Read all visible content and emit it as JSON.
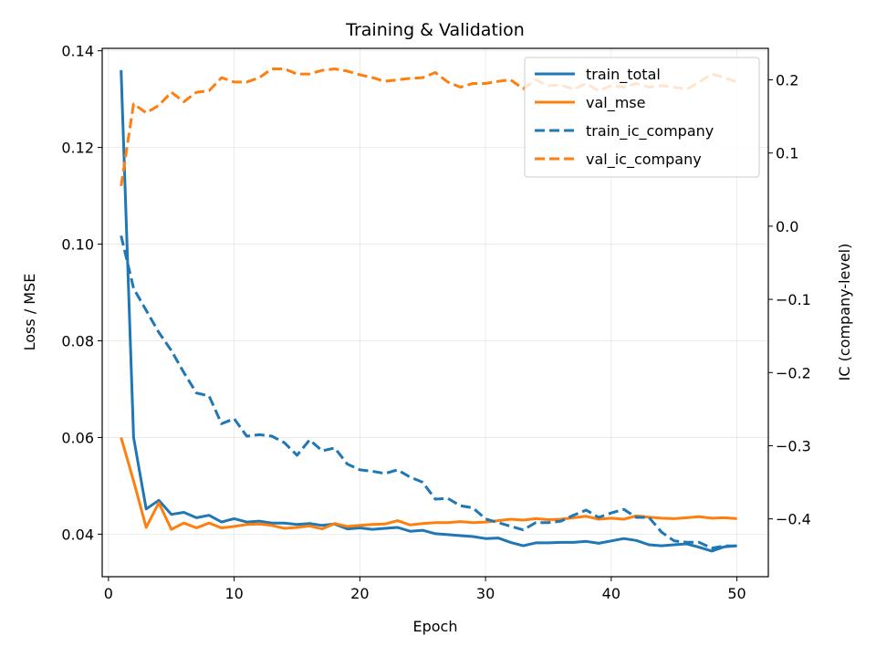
{
  "chart_data": {
    "type": "line",
    "title": "Training & Validation",
    "xlabel": "Epoch",
    "ylabel_left": "Loss / MSE",
    "ylabel_right": "IC (company-level)",
    "xlim": [
      -0.5,
      52.5
    ],
    "ylim_left": [
      0.0312,
      0.1405
    ],
    "ylim_right": [
      -0.479,
      0.243
    ],
    "x_ticks": [
      0,
      10,
      20,
      30,
      40,
      50
    ],
    "y_left_ticks": [
      0.04,
      0.06,
      0.08,
      0.1,
      0.12,
      0.14
    ],
    "y_left_tick_labels": [
      "0.04",
      "0.06",
      "0.08",
      "0.10",
      "0.12",
      "0.14"
    ],
    "y_right_ticks": [
      -0.4,
      -0.3,
      -0.2,
      -0.1,
      0.0,
      0.1,
      0.2
    ],
    "y_right_tick_labels": [
      "−0.4",
      "−0.3",
      "−0.2",
      "−0.1",
      "0.0",
      "0.1",
      "0.2"
    ],
    "grid": true,
    "legend_position": "top-right",
    "x": [
      1,
      2,
      3,
      4,
      5,
      6,
      7,
      8,
      9,
      10,
      11,
      12,
      13,
      14,
      15,
      16,
      17,
      18,
      19,
      20,
      21,
      22,
      23,
      24,
      25,
      26,
      27,
      28,
      29,
      30,
      31,
      32,
      33,
      34,
      35,
      36,
      37,
      38,
      39,
      40,
      41,
      42,
      43,
      44,
      45,
      46,
      47,
      48,
      49,
      50
    ],
    "series": [
      {
        "name": "train_total",
        "axis": "left",
        "color": "#1f77b4",
        "dash": "solid",
        "values": [
          0.136,
          0.06,
          0.0452,
          0.047,
          0.0441,
          0.0445,
          0.0434,
          0.0439,
          0.0425,
          0.0432,
          0.0425,
          0.0427,
          0.0423,
          0.0423,
          0.042,
          0.0422,
          0.0418,
          0.0421,
          0.0411,
          0.0413,
          0.041,
          0.0412,
          0.0414,
          0.0406,
          0.0408,
          0.0401,
          0.0399,
          0.0397,
          0.0395,
          0.0391,
          0.0392,
          0.0383,
          0.0376,
          0.0382,
          0.0382,
          0.0383,
          0.0383,
          0.0385,
          0.0381,
          0.0386,
          0.0391,
          0.0387,
          0.0378,
          0.0376,
          0.0378,
          0.038,
          0.0373,
          0.0365,
          0.0374,
          0.0376
        ]
      },
      {
        "name": "val_mse",
        "axis": "left",
        "color": "#ff7f0e",
        "dash": "solid",
        "values": [
          0.06,
          0.051,
          0.0414,
          0.0465,
          0.041,
          0.0423,
          0.0413,
          0.0423,
          0.0413,
          0.0416,
          0.042,
          0.0421,
          0.0418,
          0.0412,
          0.0414,
          0.0417,
          0.0411,
          0.0422,
          0.0416,
          0.0418,
          0.042,
          0.0421,
          0.0428,
          0.0419,
          0.0422,
          0.0424,
          0.0424,
          0.0426,
          0.0424,
          0.0425,
          0.0428,
          0.0431,
          0.0429,
          0.0432,
          0.043,
          0.0431,
          0.0434,
          0.0437,
          0.0431,
          0.0433,
          0.0431,
          0.0438,
          0.0435,
          0.0433,
          0.0432,
          0.0434,
          0.0436,
          0.0433,
          0.0434,
          0.0432
        ]
      },
      {
        "name": "train_ic_company",
        "axis": "right",
        "color": "#1f77b4",
        "dash": "dashed",
        "values": [
          -0.013,
          -0.085,
          -0.115,
          -0.145,
          -0.17,
          -0.2,
          -0.228,
          -0.232,
          -0.27,
          -0.263,
          -0.287,
          -0.285,
          -0.287,
          -0.296,
          -0.313,
          -0.292,
          -0.307,
          -0.303,
          -0.325,
          -0.333,
          -0.335,
          -0.338,
          -0.333,
          -0.343,
          -0.35,
          -0.373,
          -0.372,
          -0.382,
          -0.385,
          -0.4,
          -0.405,
          -0.41,
          -0.415,
          -0.405,
          -0.405,
          -0.403,
          -0.395,
          -0.388,
          -0.398,
          -0.392,
          -0.387,
          -0.398,
          -0.398,
          -0.418,
          -0.43,
          -0.432,
          -0.432,
          -0.44,
          -0.437,
          -0.437
        ]
      },
      {
        "name": "val_ic_company",
        "axis": "right",
        "color": "#ff7f0e",
        "dash": "dashed",
        "values": [
          0.055,
          0.167,
          0.155,
          0.165,
          0.183,
          0.17,
          0.183,
          0.185,
          0.203,
          0.197,
          0.197,
          0.203,
          0.215,
          0.215,
          0.208,
          0.208,
          0.213,
          0.215,
          0.212,
          0.207,
          0.203,
          0.198,
          0.2,
          0.202,
          0.203,
          0.21,
          0.197,
          0.19,
          0.195,
          0.195,
          0.198,
          0.2,
          0.188,
          0.2,
          0.192,
          0.193,
          0.187,
          0.195,
          0.185,
          0.192,
          0.19,
          0.195,
          0.19,
          0.192,
          0.19,
          0.187,
          0.197,
          0.208,
          0.203,
          0.197
        ]
      }
    ]
  }
}
